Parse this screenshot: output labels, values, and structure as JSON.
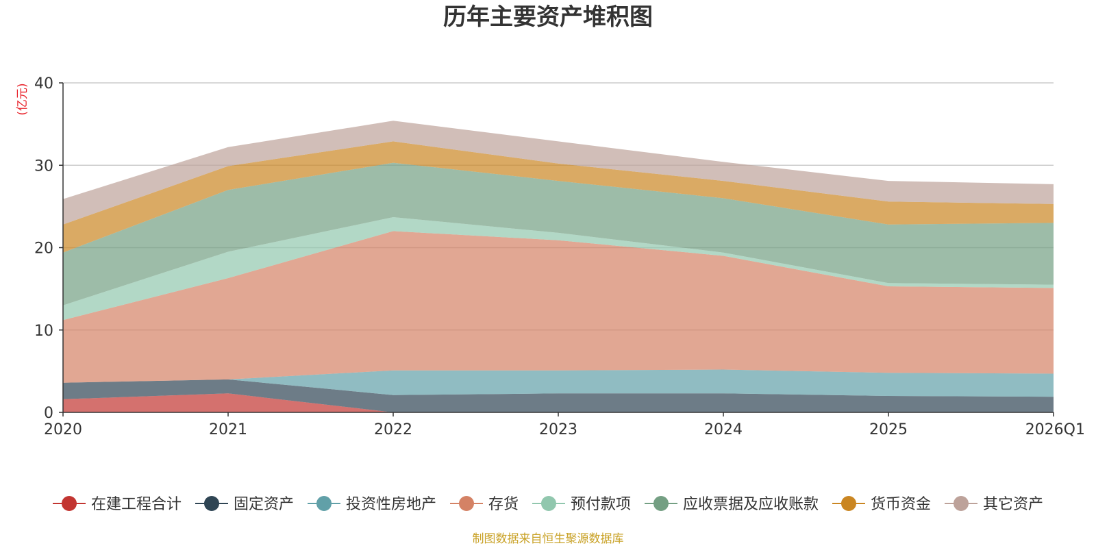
{
  "chart_data": {
    "type": "area",
    "stacked": true,
    "title": "历年主要资产堆积图",
    "ylabel": "(亿元)",
    "xlabel": "",
    "categories": [
      "2020",
      "2021",
      "2022",
      "2023",
      "2024",
      "2025",
      "2026Q1"
    ],
    "ylim": [
      0,
      40
    ],
    "yticks": [
      0,
      10,
      20,
      30,
      40
    ],
    "grid": true,
    "legend_position": "bottom",
    "series": [
      {
        "name": "在建工程合计",
        "color": "#c23531",
        "values": [
          1.6,
          2.3,
          0.0,
          0.0,
          0.0,
          0.0,
          0.0
        ]
      },
      {
        "name": "固定资产",
        "color": "#2f4554",
        "values": [
          2.0,
          1.7,
          2.1,
          2.3,
          2.3,
          2.0,
          1.9
        ]
      },
      {
        "name": "投资性房地产",
        "color": "#61a0a8",
        "values": [
          0.0,
          0.0,
          3.0,
          2.8,
          2.9,
          2.8,
          2.8
        ]
      },
      {
        "name": "存货",
        "color": "#d48265",
        "values": [
          7.6,
          12.3,
          16.9,
          15.8,
          13.8,
          10.5,
          10.4
        ]
      },
      {
        "name": "预付款项",
        "color": "#91c7ae",
        "values": [
          1.8,
          3.2,
          1.7,
          0.9,
          0.4,
          0.4,
          0.4
        ]
      },
      {
        "name": "应收票据及应收账款",
        "color": "#749f83",
        "values": [
          6.4,
          7.5,
          6.6,
          6.3,
          6.6,
          7.1,
          7.5
        ]
      },
      {
        "name": "货币资金",
        "color": "#ca8622",
        "values": [
          3.4,
          2.9,
          2.6,
          2.1,
          2.1,
          2.8,
          2.3
        ]
      },
      {
        "name": "其它资产",
        "color": "#bda29a",
        "values": [
          3.1,
          2.3,
          2.5,
          2.7,
          2.3,
          2.5,
          2.4
        ]
      }
    ],
    "source_note": "制图数据来自恒生聚源数据库"
  }
}
